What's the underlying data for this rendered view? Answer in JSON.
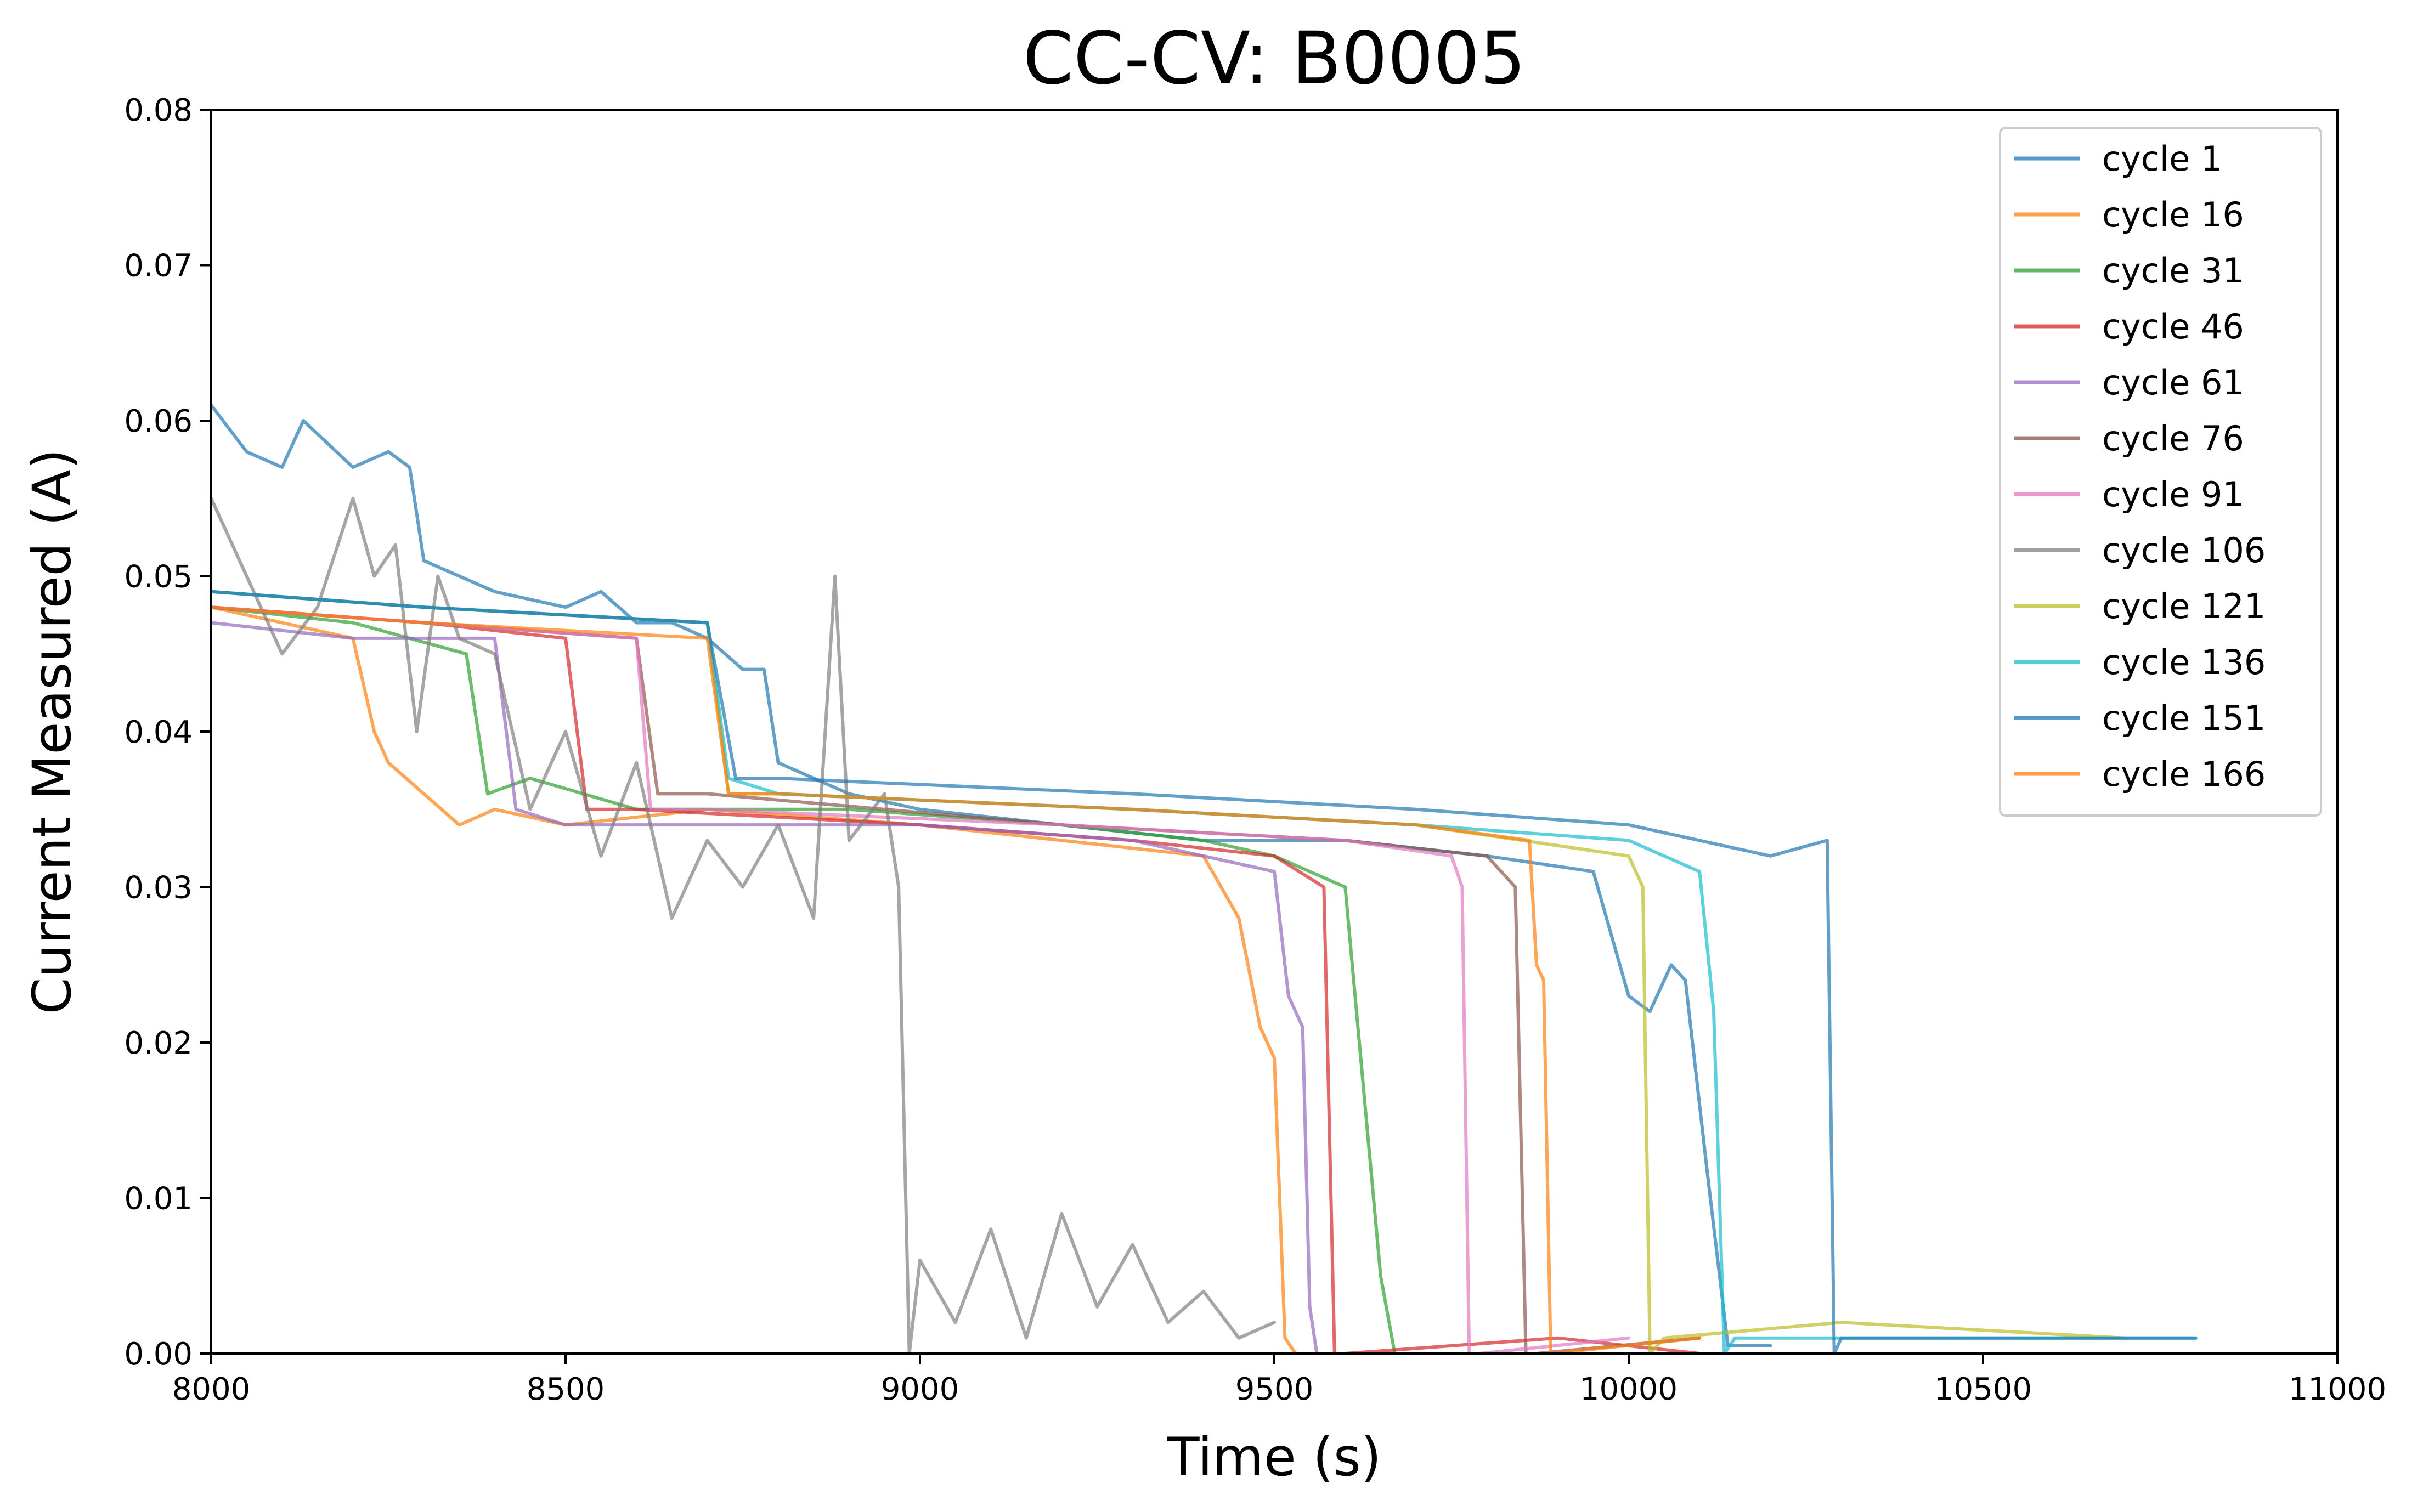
{
  "chart_data": {
    "type": "line",
    "title": "CC-CV: B0005",
    "xlabel": "Time (s)",
    "ylabel": "Current Measured (A)",
    "xlim": [
      8000,
      11000
    ],
    "ylim": [
      0,
      0.08
    ],
    "xticks": [
      8000,
      8500,
      9000,
      9500,
      10000,
      10500,
      11000
    ],
    "xtick_labels": [
      "8000",
      "8500",
      "9000",
      "9500",
      "10000",
      "10500",
      "11000"
    ],
    "yticks": [
      0,
      0.01,
      0.02,
      0.03,
      0.04,
      0.05,
      0.06,
      0.07,
      0.08
    ],
    "ytick_labels": [
      "0.00",
      "0.01",
      "0.02",
      "0.03",
      "0.04",
      "0.05",
      "0.06",
      "0.07",
      "0.08"
    ],
    "grid": false,
    "legend_position": "top-right",
    "series": [
      {
        "name": "cycle 1",
        "color": "#1f77b4",
        "x": [
          8000,
          8050,
          8100,
          8130,
          8200,
          8250,
          8280,
          8300,
          8400,
          8500,
          8550,
          8600,
          8650,
          8700,
          8750,
          8780,
          8800,
          8900,
          9000,
          9200,
          9400,
          9600,
          9800,
          9950,
          10000,
          10030,
          10060,
          10080,
          10110,
          10140,
          10200
        ],
        "y": [
          0.061,
          0.058,
          0.057,
          0.06,
          0.057,
          0.058,
          0.057,
          0.051,
          0.049,
          0.048,
          0.049,
          0.047,
          0.047,
          0.046,
          0.044,
          0.044,
          0.038,
          0.036,
          0.035,
          0.034,
          0.033,
          0.033,
          0.032,
          0.031,
          0.023,
          0.022,
          0.025,
          0.024,
          0.012,
          0.0005,
          0.0005
        ]
      },
      {
        "name": "cycle 16",
        "color": "#ff7f0e",
        "x": [
          8000,
          8100,
          8200,
          8230,
          8250,
          8300,
          8350,
          8400,
          8500,
          8700,
          9000,
          9200,
          9400,
          9450,
          9480,
          9500,
          9515,
          9530,
          9600
        ],
        "y": [
          0.048,
          0.047,
          0.046,
          0.04,
          0.038,
          0.036,
          0.034,
          0.035,
          0.034,
          0.035,
          0.034,
          0.033,
          0.032,
          0.028,
          0.021,
          0.019,
          0.001,
          0.0,
          0.0
        ]
      },
      {
        "name": "cycle 31",
        "color": "#2ca02c",
        "x": [
          8000,
          8200,
          8360,
          8390,
          8450,
          8600,
          8900,
          9200,
          9400,
          9500,
          9600,
          9620,
          9650,
          9670,
          9700
        ],
        "y": [
          0.048,
          0.047,
          0.045,
          0.036,
          0.037,
          0.035,
          0.035,
          0.034,
          0.033,
          0.032,
          0.03,
          0.02,
          0.005,
          0.0,
          0.0
        ]
      },
      {
        "name": "cycle 46",
        "color": "#d62728",
        "x": [
          8000,
          8300,
          8500,
          8530,
          8600,
          9000,
          9300,
          9500,
          9570,
          9585,
          9600,
          9900,
          10100
        ],
        "y": [
          0.048,
          0.047,
          0.046,
          0.035,
          0.035,
          0.034,
          0.033,
          0.032,
          0.03,
          0.0,
          0.0,
          0.001,
          0.0
        ]
      },
      {
        "name": "cycle 61",
        "color": "#9467bd",
        "x": [
          8000,
          8200,
          8400,
          8430,
          8500,
          9000,
          9300,
          9500,
          9520,
          9540,
          9550,
          9560,
          9700
        ],
        "y": [
          0.047,
          0.046,
          0.046,
          0.035,
          0.034,
          0.034,
          0.033,
          0.031,
          0.023,
          0.021,
          0.003,
          0.0,
          0.0
        ]
      },
      {
        "name": "cycle 76",
        "color": "#8c564b",
        "x": [
          8000,
          8300,
          8600,
          8630,
          8700,
          9200,
          9600,
          9800,
          9840,
          9855,
          9870,
          10100
        ],
        "y": [
          0.048,
          0.047,
          0.046,
          0.036,
          0.036,
          0.034,
          0.033,
          0.032,
          0.03,
          0.0,
          0.0,
          0.001
        ]
      },
      {
        "name": "cycle 91",
        "color": "#e377c2",
        "x": [
          8000,
          8300,
          8600,
          8620,
          8700,
          9200,
          9600,
          9750,
          9765,
          9775,
          9790,
          10000
        ],
        "y": [
          0.048,
          0.047,
          0.046,
          0.035,
          0.035,
          0.034,
          0.033,
          0.032,
          0.03,
          0.0,
          0.0,
          0.001
        ]
      },
      {
        "name": "cycle 106",
        "color": "#7f7f7f",
        "x": [
          8000,
          8050,
          8100,
          8150,
          8200,
          8230,
          8260,
          8290,
          8320,
          8350,
          8400,
          8450,
          8500,
          8550,
          8600,
          8650,
          8700,
          8750,
          8800,
          8850,
          8880,
          8900,
          8950,
          8970,
          8985,
          9000,
          9050,
          9100,
          9150,
          9200,
          9250,
          9300,
          9350,
          9400,
          9450,
          9500
        ],
        "y": [
          0.055,
          0.05,
          0.045,
          0.048,
          0.055,
          0.05,
          0.052,
          0.04,
          0.05,
          0.046,
          0.045,
          0.035,
          0.04,
          0.032,
          0.038,
          0.028,
          0.033,
          0.03,
          0.034,
          0.028,
          0.05,
          0.033,
          0.036,
          0.03,
          0.0,
          0.006,
          0.002,
          0.008,
          0.001,
          0.009,
          0.003,
          0.007,
          0.002,
          0.004,
          0.001,
          0.002
        ]
      },
      {
        "name": "cycle 121",
        "color": "#bcbd22",
        "x": [
          8000,
          8300,
          8700,
          8730,
          8800,
          9300,
          9700,
          10000,
          10020,
          10030,
          10050,
          10300,
          10700
        ],
        "y": [
          0.049,
          0.048,
          0.047,
          0.036,
          0.036,
          0.035,
          0.034,
          0.032,
          0.03,
          0.0,
          0.001,
          0.002,
          0.001
        ]
      },
      {
        "name": "cycle 136",
        "color": "#17becf",
        "x": [
          8000,
          8300,
          8700,
          8730,
          8800,
          9300,
          9700,
          10000,
          10100,
          10120,
          10135,
          10150,
          10500,
          10800
        ],
        "y": [
          0.049,
          0.048,
          0.047,
          0.037,
          0.036,
          0.035,
          0.034,
          0.033,
          0.031,
          0.022,
          0.0,
          0.001,
          0.001,
          0.001
        ]
      },
      {
        "name": "cycle 151",
        "color": "#1f77b4",
        "x": [
          8000,
          8300,
          8700,
          8740,
          8800,
          9300,
          9700,
          10000,
          10200,
          10280,
          10290,
          10300,
          10600,
          10800
        ],
        "y": [
          0.049,
          0.048,
          0.047,
          0.037,
          0.037,
          0.036,
          0.035,
          0.034,
          0.032,
          0.033,
          0.0,
          0.001,
          0.001,
          0.001
        ]
      },
      {
        "name": "cycle 166",
        "color": "#ff7f0e",
        "x": [
          8000,
          8300,
          8700,
          8730,
          8800,
          9300,
          9700,
          9860,
          9870,
          9880,
          9890,
          10100
        ],
        "y": [
          0.048,
          0.047,
          0.046,
          0.036,
          0.036,
          0.035,
          0.034,
          0.033,
          0.025,
          0.024,
          0.0,
          0.001
        ]
      }
    ]
  }
}
